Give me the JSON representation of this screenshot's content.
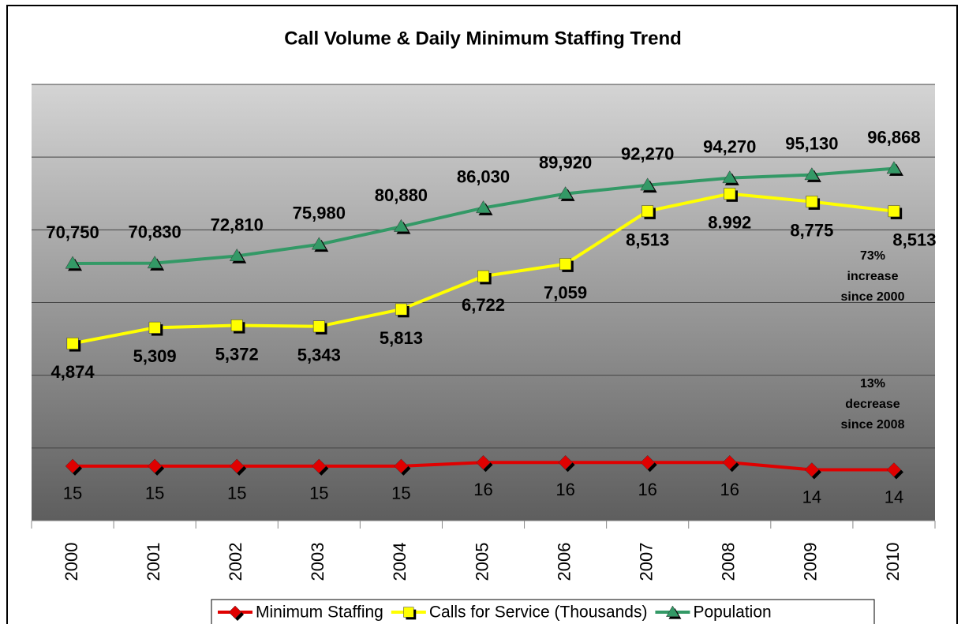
{
  "chart_data": {
    "type": "line",
    "title": "Call Volume & Daily Minimum Staffing Trend",
    "categories": [
      "2000",
      "2001",
      "2002",
      "2003",
      "2004",
      "2005",
      "2006",
      "2007",
      "2008",
      "2009",
      "2010"
    ],
    "grid": true,
    "yticks": [
      0,
      2000,
      4000,
      6000,
      8000,
      10000,
      12000
    ],
    "ylim": [
      0,
      12000
    ],
    "series": [
      {
        "name": "Minimum Staffing",
        "color": "#e00000",
        "marker": "diamond",
        "ylim": [
          0,
          120
        ],
        "values": [
          15,
          15,
          15,
          15,
          15,
          16,
          16,
          16,
          16,
          14,
          14
        ]
      },
      {
        "name": "Calls for Service (Thousands)",
        "color": "#ffff00",
        "marker": "square",
        "ylim": [
          0,
          12000
        ],
        "values": [
          4874,
          5309,
          5372,
          5343,
          5813,
          6722,
          7059,
          8513,
          8992,
          8775,
          8513
        ],
        "value_labels": [
          "4,874",
          "5,309",
          "5,372",
          "5,343",
          "5,813",
          "6,722",
          "7,059",
          "8,513",
          "8.992",
          "8,775",
          "8,513"
        ]
      },
      {
        "name": "Population",
        "color": "#339966",
        "marker": "triangle",
        "ylim": [
          0,
          120000
        ],
        "values": [
          70750,
          70830,
          72810,
          75980,
          80880,
          86030,
          89920,
          92270,
          94270,
          95130,
          96868
        ],
        "value_labels": [
          "70,750",
          "70,830",
          "72,810",
          "75,980",
          "80,880",
          "86,030",
          "89,920",
          "92,270",
          "94,270",
          "95,130",
          "96,868"
        ]
      }
    ],
    "annotations": [
      [
        "73%",
        "increase",
        "since 2000"
      ],
      [
        "13%",
        "decrease",
        "since 2008"
      ]
    ]
  }
}
